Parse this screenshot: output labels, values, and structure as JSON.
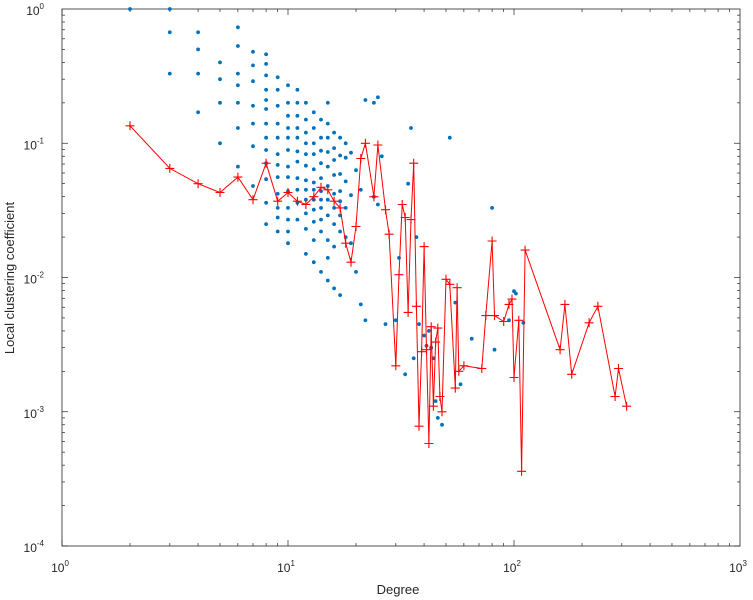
{
  "chart_data": {
    "type": "scatter",
    "title": "",
    "xlabel": "Degree",
    "ylabel": "Local clustering coefficient",
    "x_scale": "log",
    "y_scale": "log",
    "xlim": [
      1,
      1000
    ],
    "ylim": [
      0.0001,
      1
    ],
    "grid": false,
    "x_ticks": [
      {
        "base": "10",
        "exp": "0",
        "value": 1
      },
      {
        "base": "10",
        "exp": "1",
        "value": 10
      },
      {
        "base": "10",
        "exp": "2",
        "value": 100
      },
      {
        "base": "10",
        "exp": "3",
        "value": 1000
      }
    ],
    "y_ticks": [
      {
        "base": "10",
        "exp": "-4",
        "value": 0.0001
      },
      {
        "base": "10",
        "exp": "-3",
        "value": 0.001
      },
      {
        "base": "10",
        "exp": "-2",
        "value": 0.01
      },
      {
        "base": "10",
        "exp": "-1",
        "value": 0.1
      },
      {
        "base": "10",
        "exp": "0",
        "value": 1
      }
    ],
    "colors": {
      "scatter": "#0072bd",
      "average": "#ff0000"
    },
    "series": [
      {
        "marker": "dot",
        "x": [
          2,
          3,
          3,
          3,
          4,
          4,
          4,
          4,
          5,
          5,
          5,
          5,
          6,
          6,
          6,
          6,
          6,
          6,
          6,
          7,
          7,
          7,
          7,
          7,
          7,
          7,
          8,
          8,
          8,
          8,
          8,
          8,
          8,
          8,
          8,
          8,
          8,
          8,
          8,
          9,
          9,
          9,
          9,
          9,
          9,
          9,
          9,
          9,
          9,
          9,
          9,
          10,
          10,
          10,
          10,
          10,
          10,
          10,
          10,
          10,
          10,
          10,
          10,
          10,
          11,
          11,
          11,
          11,
          11,
          11,
          11,
          11,
          11,
          11,
          11,
          12,
          12,
          12,
          12,
          12,
          12,
          12,
          12,
          12,
          12,
          12,
          12,
          13,
          13,
          13,
          13,
          13,
          13,
          13,
          13,
          13,
          13,
          13,
          13,
          14,
          14,
          14,
          14,
          14,
          14,
          14,
          14,
          14,
          14,
          14,
          15,
          15,
          15,
          15,
          15,
          15,
          15,
          15,
          15,
          15,
          15,
          16,
          16,
          16,
          16,
          16,
          16,
          16,
          16,
          16,
          17,
          17,
          17,
          17,
          17,
          17,
          17,
          17,
          18,
          18,
          18,
          18,
          18,
          19,
          19,
          19,
          20,
          20,
          21,
          21,
          22,
          22,
          24,
          24,
          25,
          25,
          26,
          27,
          30,
          31,
          33,
          34,
          35,
          36,
          37,
          38,
          40,
          41,
          42,
          43,
          44,
          45,
          46,
          48,
          52,
          55,
          58,
          65,
          80,
          82,
          95,
          100,
          102,
          110
        ],
        "y": [
          1,
          1,
          0.33,
          0.67,
          0.67,
          0.33,
          0.17,
          0.5,
          0.4,
          0.3,
          0.2,
          0.1,
          0.73,
          0.53,
          0.33,
          0.27,
          0.2,
          0.13,
          0.067,
          0.48,
          0.38,
          0.29,
          0.19,
          0.14,
          0.095,
          0.048,
          0.46,
          0.39,
          0.32,
          0.25,
          0.21,
          0.18,
          0.14,
          0.11,
          0.089,
          0.071,
          0.054,
          0.036,
          0.025,
          0.31,
          0.25,
          0.19,
          0.14,
          0.11,
          0.083,
          0.069,
          0.056,
          0.042,
          0.033,
          0.028,
          0.022,
          0.27,
          0.2,
          0.16,
          0.13,
          0.11,
          0.089,
          0.067,
          0.056,
          0.044,
          0.033,
          0.027,
          0.022,
          0.018,
          0.25,
          0.2,
          0.16,
          0.13,
          0.11,
          0.087,
          0.073,
          0.055,
          0.045,
          0.036,
          0.027,
          0.2,
          0.15,
          0.12,
          0.1,
          0.083,
          0.068,
          0.053,
          0.045,
          0.038,
          0.03,
          0.023,
          0.015,
          0.17,
          0.13,
          0.1,
          0.083,
          0.064,
          0.051,
          0.045,
          0.038,
          0.032,
          0.026,
          0.019,
          0.013,
          0.15,
          0.11,
          0.088,
          0.071,
          0.055,
          0.044,
          0.038,
          0.033,
          0.027,
          0.022,
          0.011,
          0.2,
          0.14,
          0.11,
          0.086,
          0.067,
          0.048,
          0.038,
          0.029,
          0.019,
          0.014,
          0.0095,
          0.12,
          0.092,
          0.075,
          0.058,
          0.042,
          0.033,
          0.025,
          0.017,
          0.0083,
          0.11,
          0.081,
          0.059,
          0.044,
          0.037,
          0.029,
          0.022,
          0.0074,
          0.1,
          0.078,
          0.052,
          0.033,
          0.02,
          0.085,
          0.041,
          0.018,
          0.063,
          0.011,
          0.045,
          0.0063,
          0.21,
          0.0048,
          0.2,
          0.04,
          0.22,
          0.035,
          0.08,
          0.0045,
          0.0048,
          0.014,
          0.0019,
          0.05,
          0.13,
          0.0025,
          0.02,
          0.0045,
          0.0037,
          0.0031,
          0.004,
          0.003,
          0.0025,
          0.0012,
          0.0009,
          0.0008,
          0.11,
          0.0065,
          0.0016,
          0.0035,
          0.033,
          0.0029,
          0.0048,
          0.0079,
          0.0076,
          0.0046
        ]
      },
      {
        "marker": "plus-line",
        "x": [
          2,
          3,
          4,
          5,
          6,
          7,
          8,
          9,
          10,
          11,
          12,
          13,
          14,
          15,
          16,
          17,
          18,
          19,
          20,
          21,
          22,
          24,
          25,
          27,
          28,
          30,
          31,
          32,
          33,
          34,
          35,
          36,
          37,
          38,
          39,
          40,
          41,
          42,
          43,
          44,
          45,
          46,
          47,
          48,
          50,
          52,
          55,
          56,
          57,
          60,
          72,
          75,
          80,
          82,
          90,
          95,
          98,
          100,
          105,
          108,
          112,
          160,
          168,
          180,
          215,
          235,
          280,
          290,
          315
        ],
        "y": [
          0.135,
          0.065,
          0.05,
          0.043,
          0.056,
          0.038,
          0.071,
          0.037,
          0.043,
          0.037,
          0.035,
          0.04,
          0.047,
          0.045,
          0.037,
          0.033,
          0.018,
          0.013,
          0.024,
          0.077,
          0.1,
          0.04,
          0.097,
          0.032,
          0.021,
          0.0022,
          0.0105,
          0.035,
          0.028,
          0.0055,
          0.027,
          0.071,
          0.0061,
          0.00078,
          0.0028,
          0.017,
          0.0029,
          0.00058,
          0.0043,
          0.0011,
          0.0033,
          0.0042,
          0.0013,
          0.001,
          0.0097,
          0.0089,
          0.0015,
          0.0084,
          0.002,
          0.0022,
          0.0021,
          0.0052,
          0.0187,
          0.0052,
          0.0047,
          0.0063,
          0.0069,
          0.0018,
          0.0048,
          0.00036,
          0.016,
          0.0029,
          0.0063,
          0.0019,
          0.0046,
          0.0061,
          0.0013,
          0.0021,
          0.0011
        ]
      }
    ]
  }
}
